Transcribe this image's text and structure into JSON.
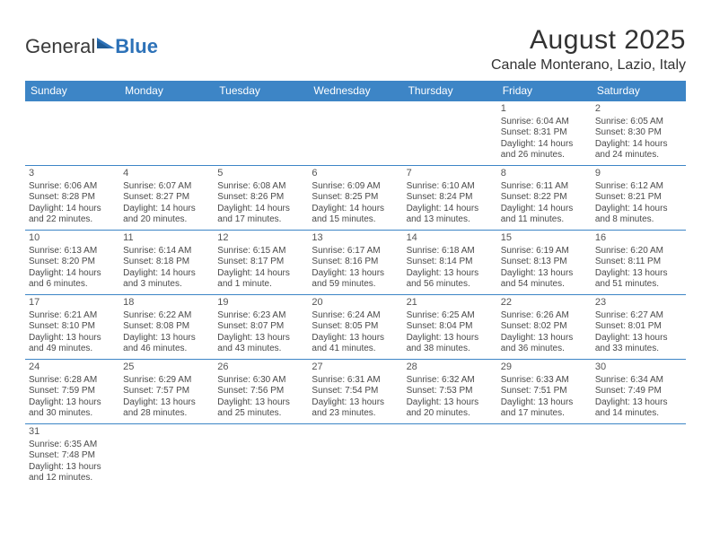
{
  "logo": {
    "text_a": "General",
    "text_b": "Blue"
  },
  "header": {
    "title": "August 2025",
    "location": "Canale Monterano, Lazio, Italy"
  },
  "colors": {
    "header_bg": "#3d85c6",
    "header_text": "#ffffff",
    "border": "#3d85c6",
    "page_bg": "#ffffff",
    "text": "#4a4a4a",
    "title": "#323232"
  },
  "dayNames": [
    "Sunday",
    "Monday",
    "Tuesday",
    "Wednesday",
    "Thursday",
    "Friday",
    "Saturday"
  ],
  "weeks": [
    [
      null,
      null,
      null,
      null,
      null,
      {
        "n": "1",
        "sr": "Sunrise: 6:04 AM",
        "ss": "Sunset: 8:31 PM",
        "d1": "Daylight: 14 hours",
        "d2": "and 26 minutes."
      },
      {
        "n": "2",
        "sr": "Sunrise: 6:05 AM",
        "ss": "Sunset: 8:30 PM",
        "d1": "Daylight: 14 hours",
        "d2": "and 24 minutes."
      }
    ],
    [
      {
        "n": "3",
        "sr": "Sunrise: 6:06 AM",
        "ss": "Sunset: 8:28 PM",
        "d1": "Daylight: 14 hours",
        "d2": "and 22 minutes."
      },
      {
        "n": "4",
        "sr": "Sunrise: 6:07 AM",
        "ss": "Sunset: 8:27 PM",
        "d1": "Daylight: 14 hours",
        "d2": "and 20 minutes."
      },
      {
        "n": "5",
        "sr": "Sunrise: 6:08 AM",
        "ss": "Sunset: 8:26 PM",
        "d1": "Daylight: 14 hours",
        "d2": "and 17 minutes."
      },
      {
        "n": "6",
        "sr": "Sunrise: 6:09 AM",
        "ss": "Sunset: 8:25 PM",
        "d1": "Daylight: 14 hours",
        "d2": "and 15 minutes."
      },
      {
        "n": "7",
        "sr": "Sunrise: 6:10 AM",
        "ss": "Sunset: 8:24 PM",
        "d1": "Daylight: 14 hours",
        "d2": "and 13 minutes."
      },
      {
        "n": "8",
        "sr": "Sunrise: 6:11 AM",
        "ss": "Sunset: 8:22 PM",
        "d1": "Daylight: 14 hours",
        "d2": "and 11 minutes."
      },
      {
        "n": "9",
        "sr": "Sunrise: 6:12 AM",
        "ss": "Sunset: 8:21 PM",
        "d1": "Daylight: 14 hours",
        "d2": "and 8 minutes."
      }
    ],
    [
      {
        "n": "10",
        "sr": "Sunrise: 6:13 AM",
        "ss": "Sunset: 8:20 PM",
        "d1": "Daylight: 14 hours",
        "d2": "and 6 minutes."
      },
      {
        "n": "11",
        "sr": "Sunrise: 6:14 AM",
        "ss": "Sunset: 8:18 PM",
        "d1": "Daylight: 14 hours",
        "d2": "and 3 minutes."
      },
      {
        "n": "12",
        "sr": "Sunrise: 6:15 AM",
        "ss": "Sunset: 8:17 PM",
        "d1": "Daylight: 14 hours",
        "d2": "and 1 minute."
      },
      {
        "n": "13",
        "sr": "Sunrise: 6:17 AM",
        "ss": "Sunset: 8:16 PM",
        "d1": "Daylight: 13 hours",
        "d2": "and 59 minutes."
      },
      {
        "n": "14",
        "sr": "Sunrise: 6:18 AM",
        "ss": "Sunset: 8:14 PM",
        "d1": "Daylight: 13 hours",
        "d2": "and 56 minutes."
      },
      {
        "n": "15",
        "sr": "Sunrise: 6:19 AM",
        "ss": "Sunset: 8:13 PM",
        "d1": "Daylight: 13 hours",
        "d2": "and 54 minutes."
      },
      {
        "n": "16",
        "sr": "Sunrise: 6:20 AM",
        "ss": "Sunset: 8:11 PM",
        "d1": "Daylight: 13 hours",
        "d2": "and 51 minutes."
      }
    ],
    [
      {
        "n": "17",
        "sr": "Sunrise: 6:21 AM",
        "ss": "Sunset: 8:10 PM",
        "d1": "Daylight: 13 hours",
        "d2": "and 49 minutes."
      },
      {
        "n": "18",
        "sr": "Sunrise: 6:22 AM",
        "ss": "Sunset: 8:08 PM",
        "d1": "Daylight: 13 hours",
        "d2": "and 46 minutes."
      },
      {
        "n": "19",
        "sr": "Sunrise: 6:23 AM",
        "ss": "Sunset: 8:07 PM",
        "d1": "Daylight: 13 hours",
        "d2": "and 43 minutes."
      },
      {
        "n": "20",
        "sr": "Sunrise: 6:24 AM",
        "ss": "Sunset: 8:05 PM",
        "d1": "Daylight: 13 hours",
        "d2": "and 41 minutes."
      },
      {
        "n": "21",
        "sr": "Sunrise: 6:25 AM",
        "ss": "Sunset: 8:04 PM",
        "d1": "Daylight: 13 hours",
        "d2": "and 38 minutes."
      },
      {
        "n": "22",
        "sr": "Sunrise: 6:26 AM",
        "ss": "Sunset: 8:02 PM",
        "d1": "Daylight: 13 hours",
        "d2": "and 36 minutes."
      },
      {
        "n": "23",
        "sr": "Sunrise: 6:27 AM",
        "ss": "Sunset: 8:01 PM",
        "d1": "Daylight: 13 hours",
        "d2": "and 33 minutes."
      }
    ],
    [
      {
        "n": "24",
        "sr": "Sunrise: 6:28 AM",
        "ss": "Sunset: 7:59 PM",
        "d1": "Daylight: 13 hours",
        "d2": "and 30 minutes."
      },
      {
        "n": "25",
        "sr": "Sunrise: 6:29 AM",
        "ss": "Sunset: 7:57 PM",
        "d1": "Daylight: 13 hours",
        "d2": "and 28 minutes."
      },
      {
        "n": "26",
        "sr": "Sunrise: 6:30 AM",
        "ss": "Sunset: 7:56 PM",
        "d1": "Daylight: 13 hours",
        "d2": "and 25 minutes."
      },
      {
        "n": "27",
        "sr": "Sunrise: 6:31 AM",
        "ss": "Sunset: 7:54 PM",
        "d1": "Daylight: 13 hours",
        "d2": "and 23 minutes."
      },
      {
        "n": "28",
        "sr": "Sunrise: 6:32 AM",
        "ss": "Sunset: 7:53 PM",
        "d1": "Daylight: 13 hours",
        "d2": "and 20 minutes."
      },
      {
        "n": "29",
        "sr": "Sunrise: 6:33 AM",
        "ss": "Sunset: 7:51 PM",
        "d1": "Daylight: 13 hours",
        "d2": "and 17 minutes."
      },
      {
        "n": "30",
        "sr": "Sunrise: 6:34 AM",
        "ss": "Sunset: 7:49 PM",
        "d1": "Daylight: 13 hours",
        "d2": "and 14 minutes."
      }
    ],
    [
      {
        "n": "31",
        "sr": "Sunrise: 6:35 AM",
        "ss": "Sunset: 7:48 PM",
        "d1": "Daylight: 13 hours",
        "d2": "and 12 minutes."
      },
      null,
      null,
      null,
      null,
      null,
      null
    ]
  ]
}
